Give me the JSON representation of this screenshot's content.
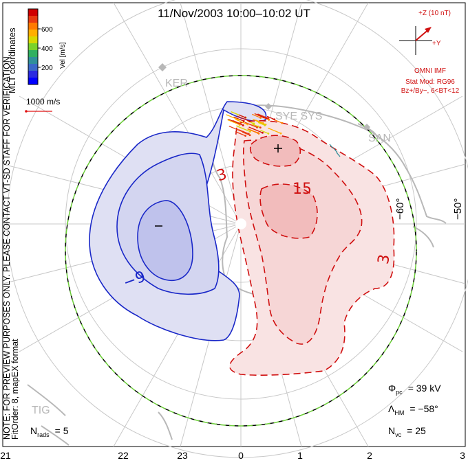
{
  "title": "11/Nov/2003  10:00–10:02  UT",
  "colorbar": {
    "title": "Vel [m/s]",
    "ticks": [
      "600",
      "400",
      "200"
    ],
    "colors": [
      "#d00000",
      "#e83a10",
      "#ff7a00",
      "#ffae00",
      "#d8d800",
      "#7ad22a",
      "#30b060",
      "#2f8f9a",
      "#3a68c8",
      "#2a2ae0",
      "#0000ff"
    ]
  },
  "coordinates_label": "MLT coordinates",
  "velocity_scale": "1000 m/s",
  "imf": {
    "z_label": "+Z (10 nT)",
    "y_label": "+Y",
    "source": "OMNI IMF",
    "stat_mod": "Stat Mod: RG96",
    "condition": "Bz+/By−, 6<BT<12"
  },
  "stations": [
    "KER",
    "SYE SYS",
    "SAN",
    "TIG"
  ],
  "latitude_labels": [
    "−60°",
    "−50°"
  ],
  "contour_labels": {
    "neg": "−9",
    "pos3a": "3",
    "pos15": "15",
    "pos3b": "3"
  },
  "extrema": {
    "min": "−",
    "max": "+"
  },
  "note_line1": "NOTE: FOR PREVIEW PURPOSES ONLY. PLEASE CONTACT VT-SD STAFF FOR VERIFICATION.",
  "note_line2": "FitOrder: 8, mapEX format",
  "stats": {
    "phi_pc": {
      "symbol": "Φ",
      "sub": "pc",
      "value": "= 39 kV"
    },
    "lambda_hm": {
      "symbol": "Λ",
      "sub": "HM",
      "value": "= −58°"
    },
    "n_vc": {
      "symbol": "N",
      "sub": "vc",
      "value": "= 25"
    },
    "n_rads": {
      "symbol": "N",
      "sub": "rads",
      "value": "= 5"
    }
  },
  "mlt_axis": [
    "21",
    "22",
    "23",
    "0",
    "1",
    "2",
    "3"
  ],
  "colors": {
    "neg_line": "#1a28c8",
    "pos_line": "#d01010",
    "neg_fill_light": "#dfe0f3",
    "neg_fill_dark": "#bfc2ec",
    "pos_fill_light": "#f9e3e3",
    "pos_fill_dark": "#f2bcbc",
    "grid": "#c8c8c8",
    "land": "#b8b8b8",
    "heppner": "#6dcf3a"
  }
}
